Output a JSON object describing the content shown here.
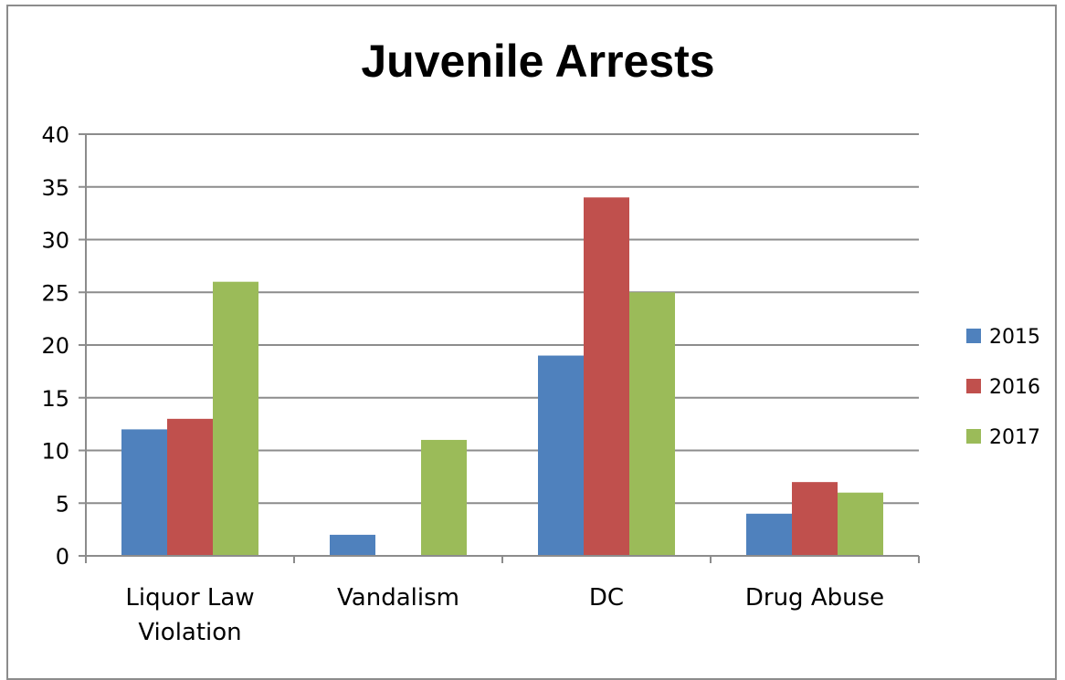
{
  "chart_data": {
    "type": "bar",
    "title": "Juvenile Arrests",
    "categories": [
      [
        "Liquor Law",
        "Violation"
      ],
      [
        "Vandalism"
      ],
      [
        "DC"
      ],
      [
        "Drug Abuse"
      ]
    ],
    "series": [
      {
        "name": "2015",
        "color": "#4f81bd",
        "values": [
          12,
          2,
          19,
          4
        ]
      },
      {
        "name": "2016",
        "color": "#c0504d",
        "values": [
          13,
          0,
          34,
          7
        ]
      },
      {
        "name": "2017",
        "color": "#9bbb59",
        "values": [
          26,
          11,
          25,
          6
        ]
      }
    ],
    "ylim": [
      0,
      40
    ],
    "yticks": [
      0,
      5,
      10,
      15,
      20,
      25,
      30,
      35,
      40
    ],
    "grid": true,
    "legend": "right"
  }
}
